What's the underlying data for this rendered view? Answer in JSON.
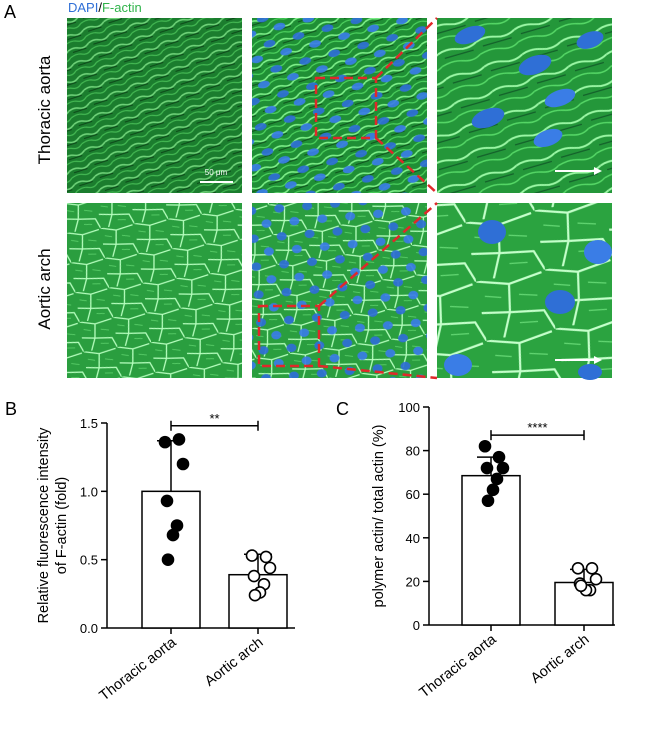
{
  "panel_a": {
    "letter": "A",
    "legend_dapi": "DAPI",
    "legend_sep": "/",
    "legend_factin": "F-actin",
    "row_labels": [
      "Thoracic aorta",
      "Aortic arch"
    ],
    "scale_bar_label": "50 μm",
    "colors": {
      "dapi": "#2f6fd6",
      "factin": "#2fb34a",
      "roi": "#e0282a"
    }
  },
  "chart_data": [
    {
      "panel": "B",
      "type": "bar",
      "title": "",
      "xlabel": "",
      "ylabel": "Relative fluorescence intensity of F-actin (fold)",
      "ylabel_lines": [
        "Relative fluorescence intensity",
        "of F-actin (fold)"
      ],
      "categories": [
        "Thoracic aorta",
        "Aortic arch"
      ],
      "values": [
        1.0,
        0.39
      ],
      "error_upper": [
        0.37,
        0.15
      ],
      "points": [
        [
          1.36,
          1.38,
          1.2,
          0.93,
          0.75,
          0.68,
          0.5
        ],
        [
          0.53,
          0.52,
          0.44,
          0.38,
          0.32,
          0.26,
          0.24
        ]
      ],
      "ylim": [
        0,
        1.5
      ],
      "yticks": [
        "0.0",
        "0.5",
        "1.0",
        "1.5"
      ],
      "ytick_values": [
        0,
        0.5,
        1.0,
        1.5
      ],
      "significance": "**",
      "marker_styles": [
        "filled",
        "open"
      ]
    },
    {
      "panel": "C",
      "type": "bar",
      "title": "",
      "xlabel": "",
      "ylabel": "polymer actin/ total actin (%)",
      "ylabel_lines": [
        "polymer actin/ total actin (%)"
      ],
      "categories": [
        "Thoracic aorta",
        "Aortic arch"
      ],
      "values": [
        68.5,
        19.5
      ],
      "error_upper": [
        8.5,
        6.0
      ],
      "points": [
        [
          82,
          77,
          72,
          72,
          67,
          62,
          57
        ],
        [
          26,
          26,
          21,
          19,
          16,
          16,
          18
        ]
      ],
      "ylim": [
        0,
        100
      ],
      "yticks": [
        "0",
        "20",
        "40",
        "60",
        "80",
        "100"
      ],
      "ytick_values": [
        0,
        20,
        40,
        60,
        80,
        100
      ],
      "significance": "****",
      "marker_styles": [
        "filled",
        "open"
      ]
    }
  ]
}
